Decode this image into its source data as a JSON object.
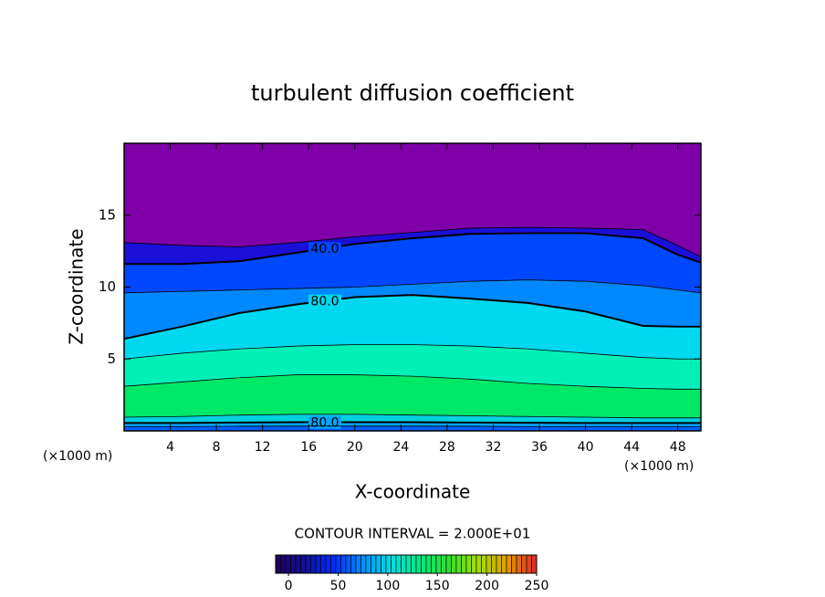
{
  "chart_data": {
    "type": "contour",
    "title": "turbulent diffusion coefficient",
    "x_label": "X-coordinate",
    "y_label": "Z-coordinate",
    "x_unit": "(×1000 m)",
    "y_unit": "(×1000 m)",
    "xlim": [
      0,
      50
    ],
    "ylim": [
      0,
      20
    ],
    "xticks": [
      4,
      8,
      12,
      16,
      20,
      24,
      28,
      32,
      36,
      40,
      44,
      48
    ],
    "yticks": [
      5,
      10,
      15
    ],
    "background": "#7f00a8",
    "x": [
      0,
      5,
      10,
      15,
      20,
      25,
      30,
      35,
      40,
      45,
      48,
      50
    ],
    "contours": [
      {
        "color": "#1a10d8",
        "values": [
          13.1,
          12.9,
          12.8,
          13.1,
          13.5,
          13.8,
          14.1,
          14.15,
          14.1,
          14.0,
          12.9,
          12.1
        ]
      },
      {
        "color": "#0048ff",
        "level": 40,
        "level_label": "40.0",
        "values": [
          11.6,
          11.6,
          11.8,
          12.4,
          13.0,
          13.4,
          13.7,
          13.75,
          13.75,
          13.4,
          12.25,
          11.7
        ]
      },
      {
        "color": "#0088ff",
        "values": [
          9.6,
          9.7,
          9.8,
          9.9,
          10.0,
          10.2,
          10.4,
          10.5,
          10.4,
          10.1,
          9.8,
          9.6
        ]
      },
      {
        "color": "#00d8f0",
        "level": 80,
        "level_label": "80.0",
        "values": [
          6.4,
          7.25,
          8.2,
          8.8,
          9.3,
          9.45,
          9.2,
          8.9,
          8.3,
          7.3,
          7.25,
          7.25
        ]
      },
      {
        "color": "#00f0b8",
        "values": [
          5.0,
          5.4,
          5.7,
          5.9,
          6.0,
          6.0,
          5.9,
          5.7,
          5.4,
          5.1,
          5.0,
          5.0
        ]
      },
      {
        "color": "#00e868",
        "values": [
          3.1,
          3.4,
          3.7,
          3.9,
          3.9,
          3.8,
          3.6,
          3.3,
          3.1,
          2.95,
          2.9,
          2.9
        ]
      },
      {
        "color": "#00d0e0",
        "values": [
          0.95,
          1.0,
          1.1,
          1.15,
          1.15,
          1.1,
          1.05,
          1.0,
          0.95,
          0.9,
          0.9,
          0.9
        ]
      },
      {
        "color": "#00a8ff",
        "level": 80,
        "level_label": "80.0",
        "values": [
          0.55,
          0.55,
          0.58,
          0.6,
          0.6,
          0.6,
          0.58,
          0.56,
          0.55,
          0.55,
          0.55,
          0.55
        ]
      },
      {
        "color": "#0060ff",
        "values": [
          0.3,
          0.3,
          0.32,
          0.33,
          0.33,
          0.33,
          0.32,
          0.3,
          0.3,
          0.3,
          0.3,
          0.3
        ]
      }
    ],
    "colorbar": {
      "title": "CONTOUR INTERVAL = 2.000E+01",
      "lim": [
        -13,
        250
      ],
      "ticks": [
        0,
        50,
        100,
        150,
        200,
        250
      ],
      "colors": [
        "#200060",
        "#1010a0",
        "#0030ff",
        "#0090ff",
        "#00e0e0",
        "#00e880",
        "#30e030",
        "#a0e000",
        "#e0a000",
        "#e03020"
      ]
    }
  }
}
